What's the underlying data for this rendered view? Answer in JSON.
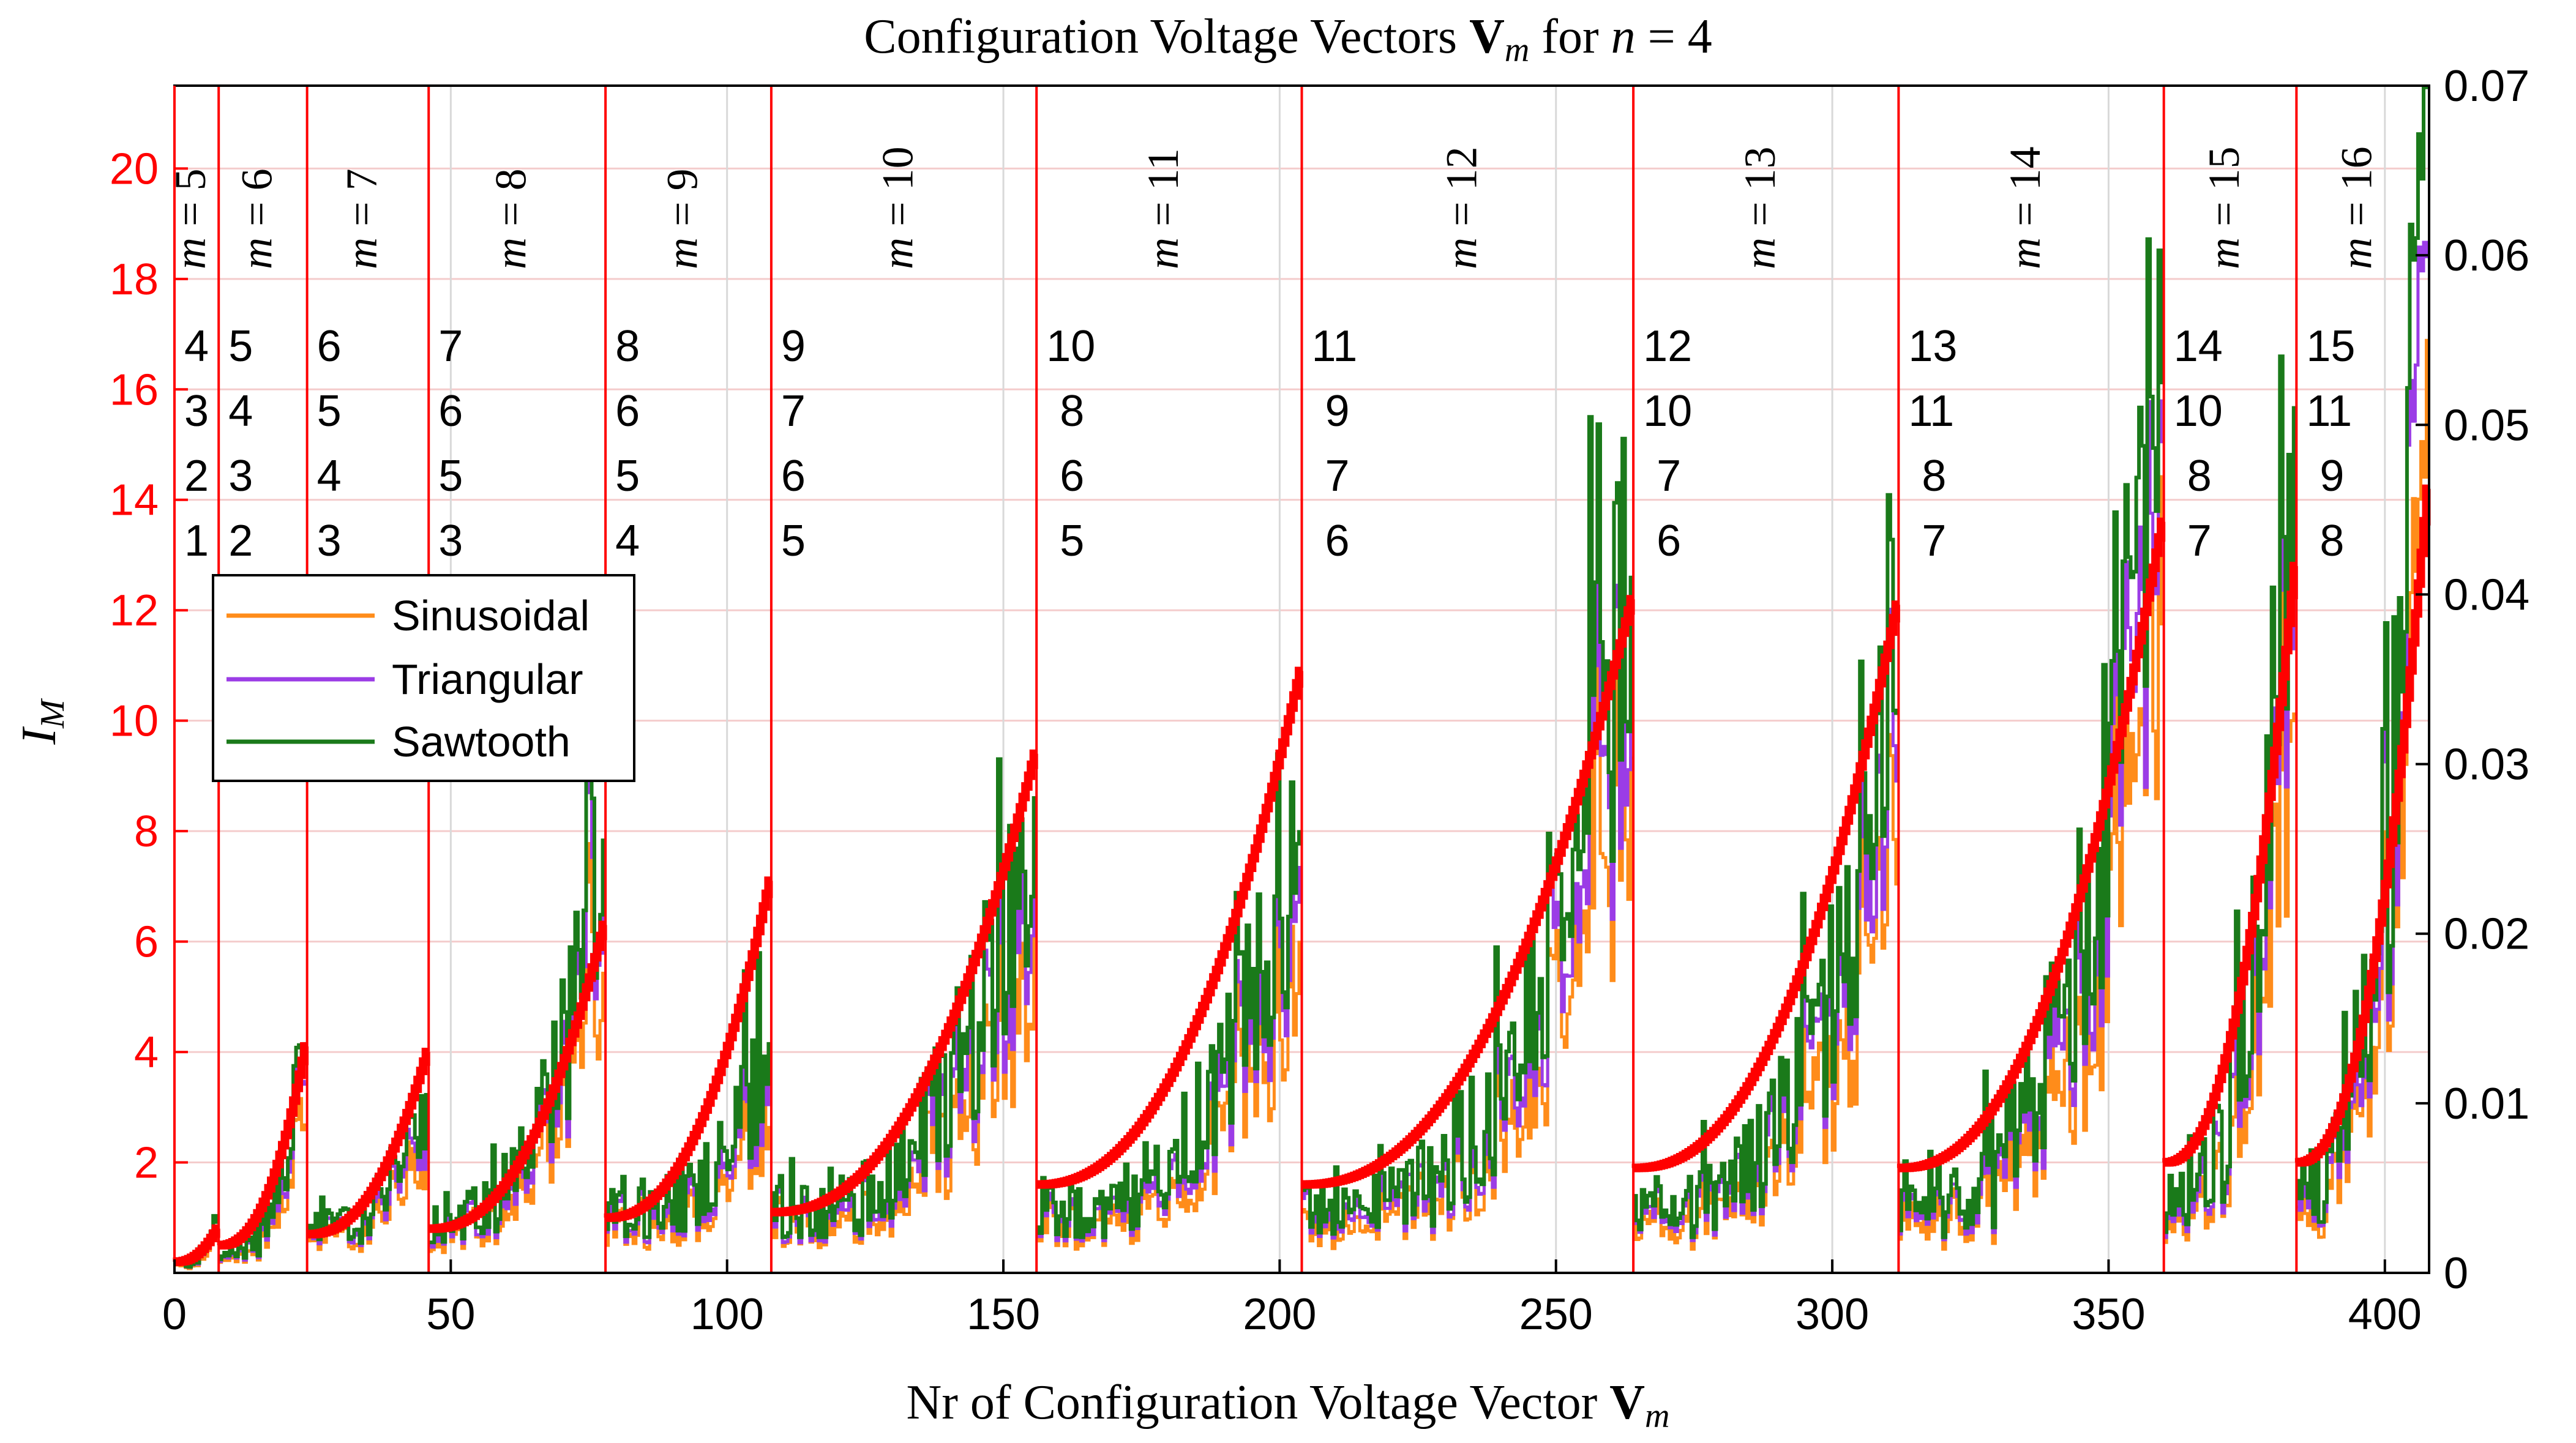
{
  "chart_data": {
    "type": "line",
    "title": "Configuration Voltage Vectors V_m for n = 4",
    "title_parts": {
      "prefix": "Configuration Voltage Vectors ",
      "bold": "V",
      "sub": "m",
      "mid": " for ",
      "italic": "n",
      "suffix": " = 4"
    },
    "xlabel": "Nr of Configuration Voltage Vector V_m",
    "xlabel_parts": {
      "prefix": "Nr of Configuration Voltage Vector ",
      "bold": "V",
      "sub": "m"
    },
    "ylabel": "I_M",
    "ylabel_parts": {
      "main": "I",
      "sub": "M"
    },
    "xlim": [
      0,
      408
    ],
    "ylim": [
      0,
      21.5
    ],
    "y2lim": [
      0,
      0.07
    ],
    "x_ticks": [
      "0",
      "50",
      "100",
      "150",
      "200",
      "250",
      "300",
      "350",
      "400"
    ],
    "x_tick_values": [
      0,
      50,
      100,
      150,
      200,
      250,
      300,
      350,
      400
    ],
    "y_ticks": [
      "2",
      "4",
      "6",
      "8",
      "10",
      "12",
      "14",
      "16",
      "18",
      "20"
    ],
    "y_tick_values": [
      2,
      4,
      6,
      8,
      10,
      12,
      14,
      16,
      18,
      20
    ],
    "y2_ticks": [
      "0",
      "0.01",
      "0.02",
      "0.03",
      "0.04",
      "0.05",
      "0.06",
      "0.07"
    ],
    "y2_tick_values": [
      0,
      0.01,
      0.02,
      0.03,
      0.04,
      0.05,
      0.06,
      0.07
    ],
    "gray_gridlines_x": [
      50,
      100,
      150,
      200,
      250,
      300,
      350,
      400
    ],
    "legend": [
      "Sinusoidal",
      "Triangular",
      "Sawtooth"
    ],
    "legend_position": "left",
    "colors": {
      "primary_axis": "#ff0000",
      "im_series": "#ff0000",
      "sinusoidal": "#ff8c1a",
      "triangular": "#9b3ce6",
      "sawtooth": "#1a7a1a",
      "grid": "#f4cccc",
      "vgrid": "#d9d9d9"
    },
    "groups": [
      {
        "m": 5,
        "label": "m = 5",
        "start": 0,
        "end": 8,
        "combo": [
          "4",
          "3",
          "2",
          "1"
        ],
        "im_start": 0.2,
        "im_end": 0.8,
        "v_lo": 0.0005,
        "v_hi": 0.003
      },
      {
        "m": 6,
        "label": "m = 6",
        "start": 8,
        "end": 24,
        "combo": [
          "5",
          "4",
          "3",
          "2"
        ],
        "im_start": 0.5,
        "im_end": 4.1,
        "v_lo": 0.001,
        "v_hi": 0.0135
      },
      {
        "m": 7,
        "label": "m = 7",
        "start": 24,
        "end": 46,
        "combo": [
          "6",
          "5",
          "4",
          "3"
        ],
        "im_start": 0.7,
        "im_end": 4.0,
        "v_lo": 0.0025,
        "v_hi": 0.0105
      },
      {
        "m": 8,
        "label": "m = 8",
        "start": 46,
        "end": 78,
        "combo": [
          "7",
          "6",
          "5",
          "3"
        ],
        "im_start": 0.8,
        "im_end": 6.3,
        "v_lo": 0.003,
        "v_hi": 0.0255
      },
      {
        "m": 9,
        "label": "m = 9",
        "start": 78,
        "end": 108,
        "combo": [
          "8",
          "6",
          "5",
          "4"
        ],
        "im_start": 1.0,
        "im_end": 7.1,
        "v_lo": 0.0035,
        "v_hi": 0.0135
      },
      {
        "m": 10,
        "label": "m = 10",
        "start": 108,
        "end": 156,
        "combo": [
          "9",
          "7",
          "6",
          "5"
        ],
        "im_start": 1.1,
        "im_end": 9.4,
        "v_lo": 0.0035,
        "v_hi": 0.028
      },
      {
        "m": 11,
        "label": "m = 11",
        "start": 156,
        "end": 204,
        "combo": [
          "10",
          "8",
          "6",
          "5"
        ],
        "im_start": 1.6,
        "im_end": 10.9,
        "v_lo": 0.0035,
        "v_hi": 0.026
      },
      {
        "m": 12,
        "label": "m = 12",
        "start": 204,
        "end": 264,
        "combo": [
          "11",
          "9",
          "7",
          "6"
        ],
        "im_start": 1.6,
        "im_end": 12.2,
        "v_lo": 0.0035,
        "v_hi": 0.041
      },
      {
        "m": 13,
        "label": "m = 13",
        "start": 264,
        "end": 312,
        "combo": [
          "12",
          "10",
          "7",
          "6"
        ],
        "im_start": 1.9,
        "im_end": 12.1,
        "v_lo": 0.0035,
        "v_hi": 0.033
      },
      {
        "m": 14,
        "label": "m = 14",
        "start": 312,
        "end": 360,
        "combo": [
          "13",
          "11",
          "8",
          "7"
        ],
        "im_start": 1.9,
        "im_end": 13.6,
        "v_lo": 0.0035,
        "v_hi": 0.0525
      },
      {
        "m": 15,
        "label": "m = 15",
        "start": 360,
        "end": 384,
        "combo": [
          "14",
          "10",
          "8",
          "7"
        ],
        "im_start": 2.0,
        "im_end": 12.8,
        "v_lo": 0.004,
        "v_hi": 0.051
      },
      {
        "m": 16,
        "label": "m = 16",
        "start": 384,
        "end": 408,
        "combo": [
          "15",
          "11",
          "9",
          "8"
        ],
        "im_start": 2.0,
        "im_end": 14.2,
        "v_lo": 0.005,
        "v_hi": 0.07
      }
    ]
  }
}
